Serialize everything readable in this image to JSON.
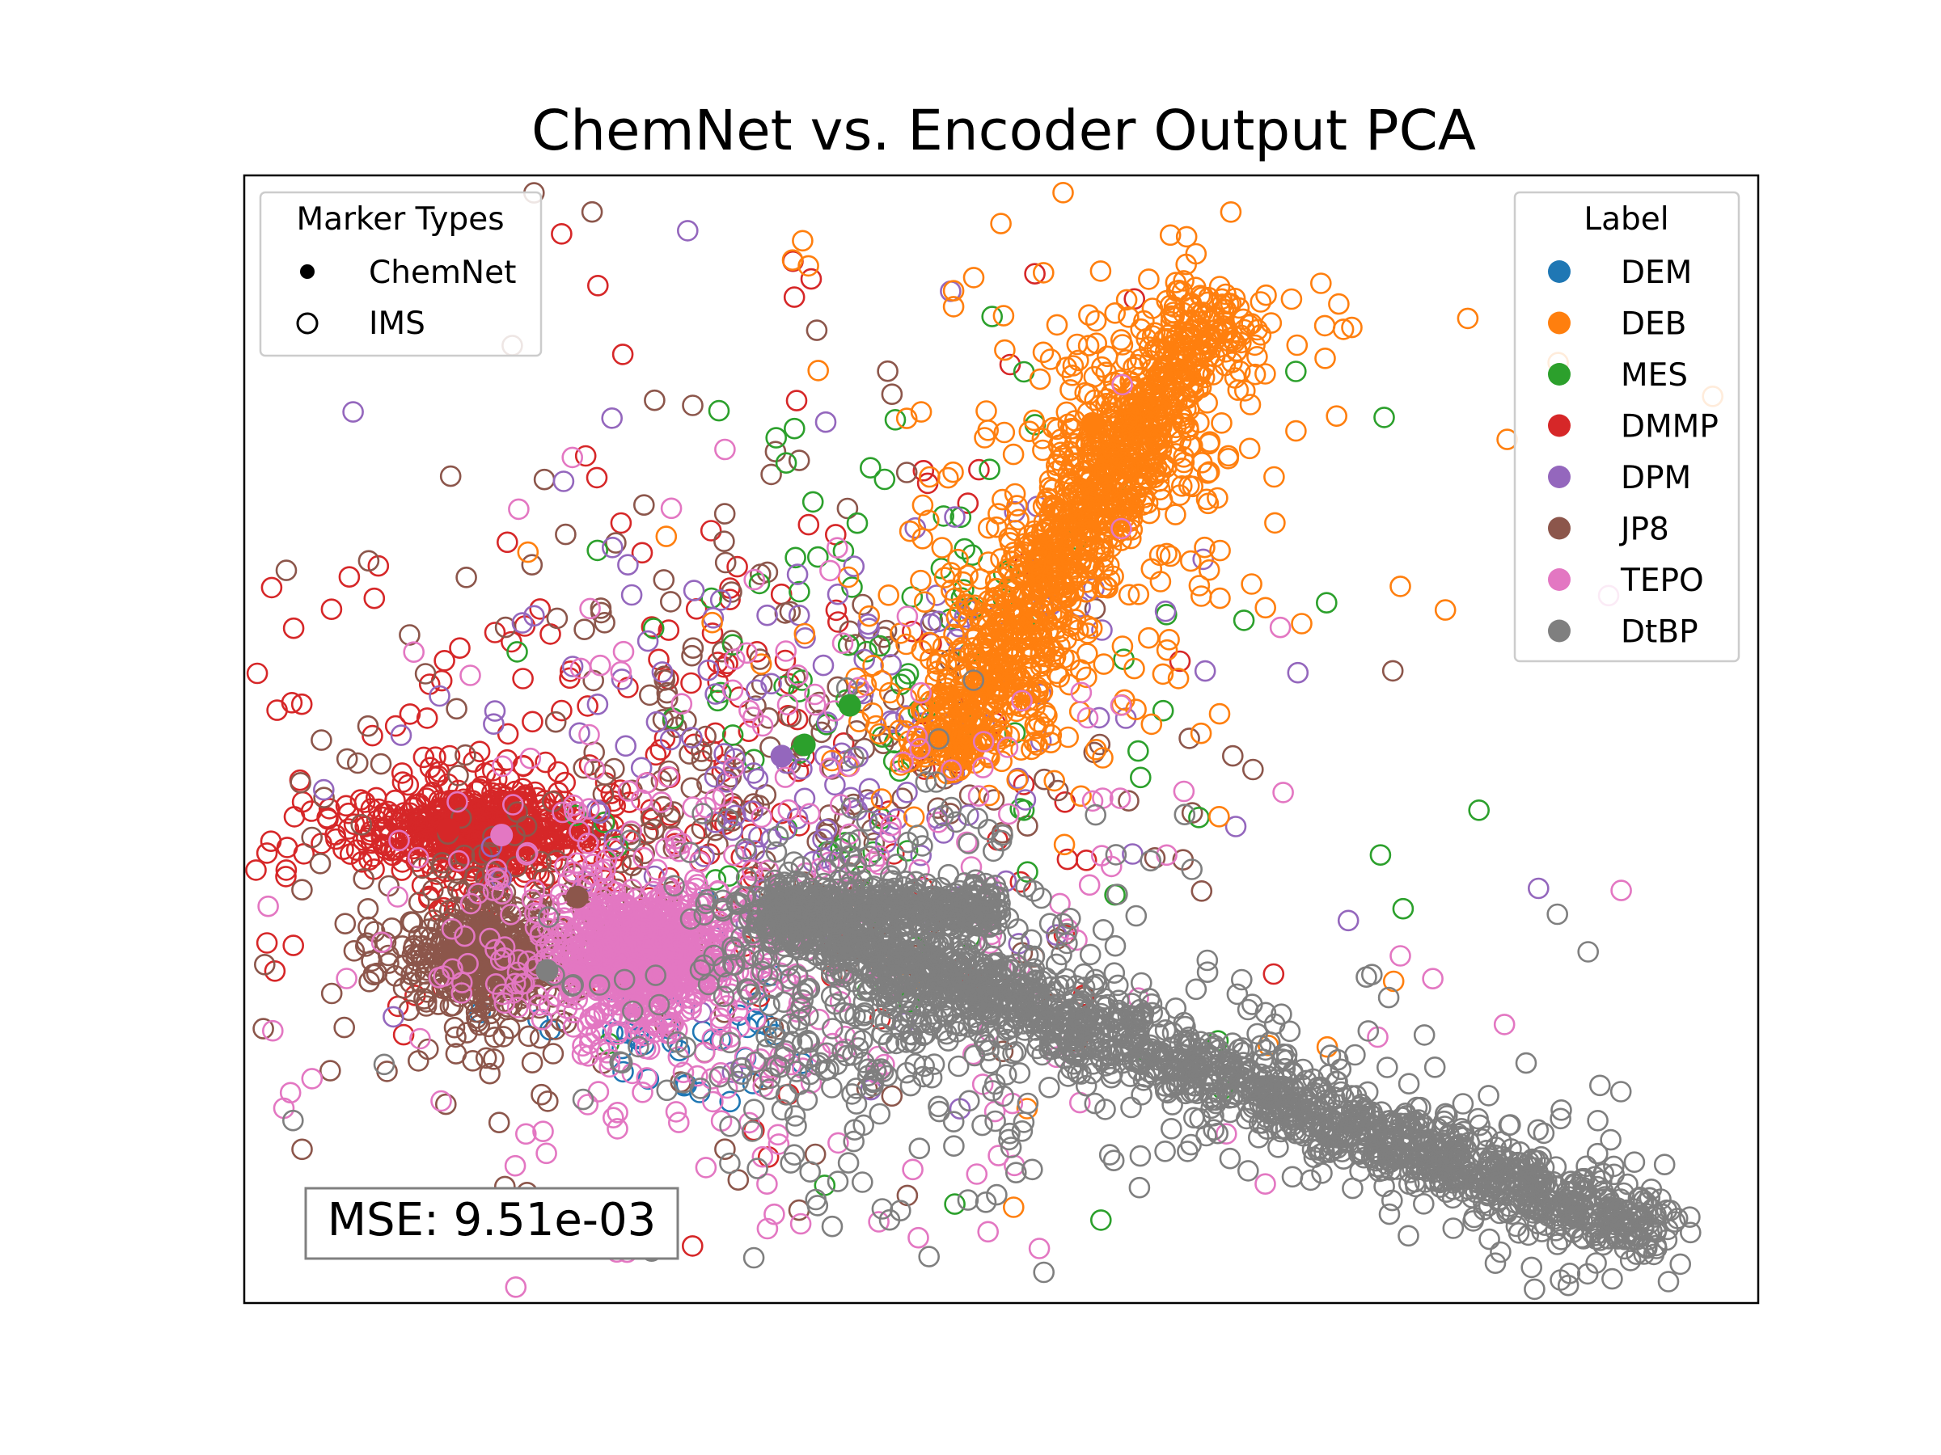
{
  "chart_data": {
    "type": "scatter",
    "title": "ChemNet vs. Encoder Output PCA",
    "xlabel": "",
    "ylabel": "",
    "xlim": [
      0,
      1
    ],
    "ylim": [
      0,
      1
    ],
    "axes_ticks_shown": false,
    "grid": false,
    "marker_legend": {
      "title": "Marker Types",
      "placement": "top-left",
      "entries": [
        {
          "label": "ChemNet",
          "marker": "filled"
        },
        {
          "label": "IMS",
          "marker": "hollow"
        }
      ]
    },
    "label_legend": {
      "title": "Label",
      "placement": "top-right",
      "entries": [
        {
          "label": "DEM",
          "color": "#1f77b4"
        },
        {
          "label": "DEB",
          "color": "#ff7f0e"
        },
        {
          "label": "MES",
          "color": "#2ca02c"
        },
        {
          "label": "DMMP",
          "color": "#d62728"
        },
        {
          "label": "DPM",
          "color": "#9467bd"
        },
        {
          "label": "JP8",
          "color": "#8c564b"
        },
        {
          "label": "TEPO",
          "color": "#e377c2"
        },
        {
          "label": "DtBP",
          "color": "#7f7f7f"
        }
      ]
    },
    "annotation": {
      "text": "MSE: 9.51e-03",
      "placement": "bottom-left"
    },
    "draw_order": [
      "DEM",
      "DMMP",
      "JP8",
      "MES",
      "DPM",
      "DEB",
      "TEPO",
      "DtBP"
    ],
    "series": [
      {
        "name": "DEB",
        "color": "#ff7f0e",
        "clusters": [
          {
            "kind": "line",
            "x0": 0.46,
            "y0": 0.48,
            "x1": 0.64,
            "y1": 0.89,
            "n": 1300,
            "along": 0.015,
            "across": 0.032,
            "core": 0.8
          },
          {
            "kind": "blob",
            "cx": 0.55,
            "cy": 0.68,
            "sx": 0.055,
            "sy": 0.09,
            "n": 110,
            "core": 0.0
          }
        ],
        "chemnet": [
          [
            0.56,
            0.78
          ]
        ]
      },
      {
        "name": "MES",
        "color": "#2ca02c",
        "clusters": [
          {
            "kind": "blob",
            "cx": 0.42,
            "cy": 0.52,
            "sx": 0.055,
            "sy": 0.07,
            "n": 90,
            "core": 0.0
          },
          {
            "kind": "blob",
            "cx": 0.5,
            "cy": 0.7,
            "sx": 0.04,
            "sy": 0.05,
            "n": 20,
            "core": 0.0
          }
        ],
        "chemnet": [
          [
            0.4,
            0.53
          ],
          [
            0.37,
            0.495
          ]
        ]
      },
      {
        "name": "DMMP",
        "color": "#d62728",
        "clusters": [
          {
            "kind": "blob",
            "cx": 0.155,
            "cy": 0.42,
            "sx": 0.05,
            "sy": 0.025,
            "n": 700,
            "core": 0.85
          },
          {
            "kind": "blob",
            "cx": 0.29,
            "cy": 0.5,
            "sx": 0.085,
            "sy": 0.085,
            "n": 170,
            "core": 0.0
          }
        ],
        "chemnet": [
          [
            0.135,
            0.42
          ]
        ]
      },
      {
        "name": "DPM",
        "color": "#9467bd",
        "clusters": [
          {
            "kind": "blob",
            "cx": 0.38,
            "cy": 0.48,
            "sx": 0.07,
            "sy": 0.065,
            "n": 160,
            "core": 0.0
          }
        ],
        "chemnet": [
          [
            0.355,
            0.485
          ]
        ]
      },
      {
        "name": "JP8",
        "color": "#8c564b",
        "clusters": [
          {
            "kind": "blob",
            "cx": 0.16,
            "cy": 0.31,
            "sx": 0.035,
            "sy": 0.038,
            "n": 520,
            "core": 0.85
          },
          {
            "kind": "blob",
            "cx": 0.32,
            "cy": 0.44,
            "sx": 0.07,
            "sy": 0.075,
            "n": 260,
            "core": 0.0
          }
        ],
        "chemnet": [
          [
            0.22,
            0.36
          ]
        ]
      },
      {
        "name": "DEM",
        "color": "#1f77b4",
        "clusters": [
          {
            "kind": "blob",
            "cx": 0.29,
            "cy": 0.24,
            "sx": 0.03,
            "sy": 0.02,
            "n": 40,
            "core": 0.0
          }
        ],
        "chemnet": []
      },
      {
        "name": "TEPO",
        "color": "#e377c2",
        "clusters": [
          {
            "kind": "blob",
            "cx": 0.26,
            "cy": 0.31,
            "sx": 0.045,
            "sy": 0.038,
            "n": 1000,
            "core": 0.85
          },
          {
            "kind": "blob",
            "cx": 0.36,
            "cy": 0.34,
            "sx": 0.08,
            "sy": 0.08,
            "n": 230,
            "core": 0.0
          }
        ],
        "chemnet": [
          [
            0.17,
            0.415
          ]
        ]
      },
      {
        "name": "DtBP",
        "color": "#7f7f7f",
        "clusters": [
          {
            "kind": "line",
            "x0": 0.34,
            "y0": 0.35,
            "x1": 0.93,
            "y1": 0.06,
            "n": 1800,
            "along": 0.022,
            "across": 0.027,
            "core": 0.8
          },
          {
            "kind": "bar",
            "x0": 0.35,
            "x1": 0.5,
            "cy": 0.35,
            "sy": 0.01,
            "n": 350
          },
          {
            "kind": "blob",
            "cx": 0.42,
            "cy": 0.27,
            "sx": 0.045,
            "sy": 0.045,
            "n": 380,
            "core": 0.0
          }
        ],
        "chemnet": [
          [
            0.2,
            0.295
          ]
        ]
      }
    ]
  }
}
